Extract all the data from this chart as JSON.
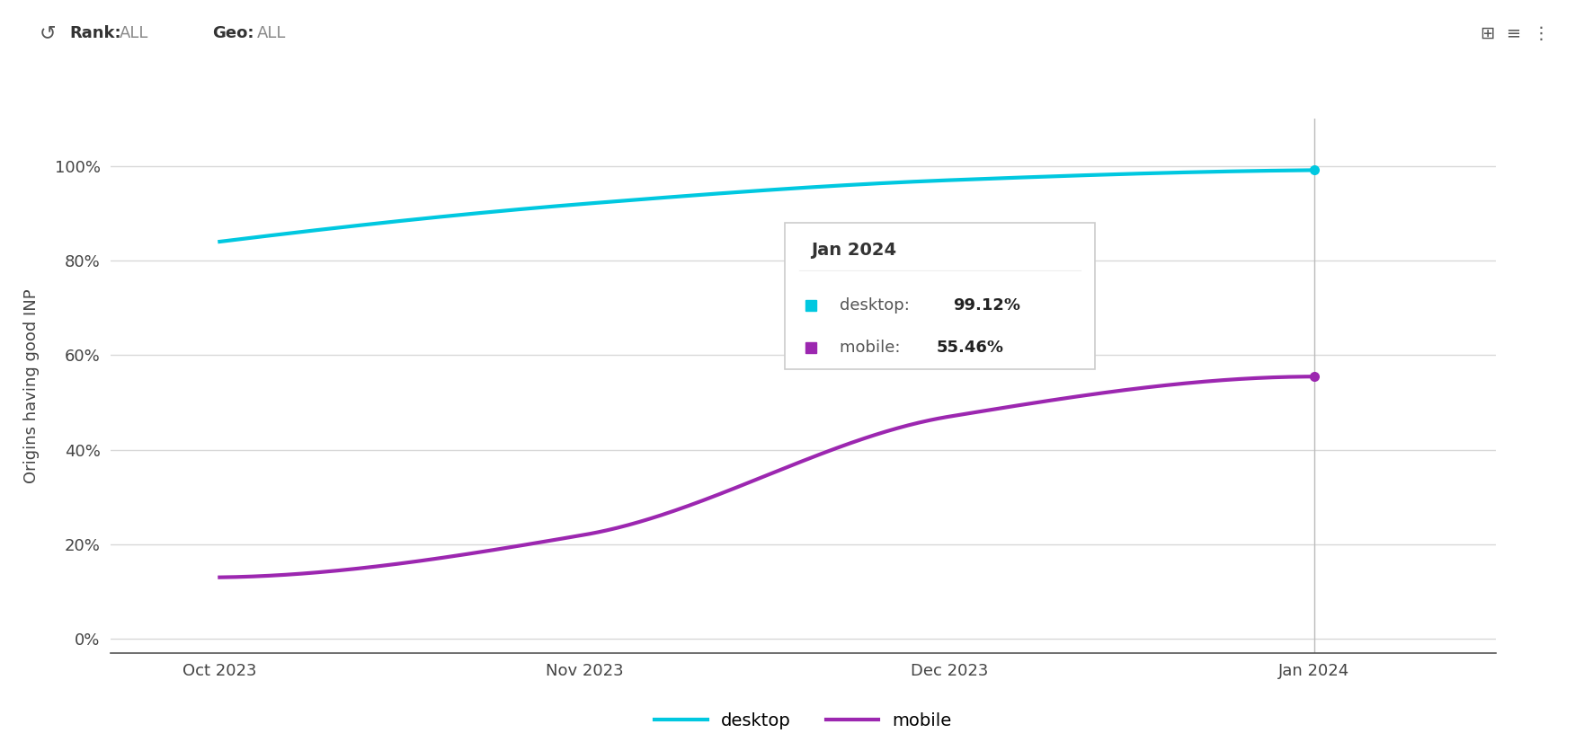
{
  "x_labels": [
    "Oct 2023",
    "Nov 2023",
    "Dec 2023",
    "Jan 2024"
  ],
  "x_values": [
    0,
    1,
    2,
    3
  ],
  "desktop_values": [
    0.84,
    0.92,
    0.97,
    0.9912
  ],
  "mobile_values": [
    0.13,
    0.22,
    0.47,
    0.5546
  ],
  "desktop_color": "#00c8e0",
  "mobile_color": "#9c27b0",
  "ylabel": "Origins having good INP",
  "yticks": [
    0.0,
    0.2,
    0.4,
    0.6,
    0.8,
    1.0
  ],
  "ytick_labels": [
    "0%",
    "20%",
    "40%",
    "60%",
    "80%",
    "100%"
  ],
  "ylim": [
    -0.03,
    1.1
  ],
  "xlim": [
    -0.3,
    3.5
  ],
  "background_color": "#ffffff",
  "grid_color": "#d8d8d8",
  "tooltip_title": "Jan 2024",
  "line_width": 3.0,
  "marker_size": 8,
  "font_size_ticks": 13,
  "font_size_ylabel": 13,
  "font_size_legend": 14,
  "font_size_tooltip_title": 14,
  "font_size_tooltip_body": 13
}
